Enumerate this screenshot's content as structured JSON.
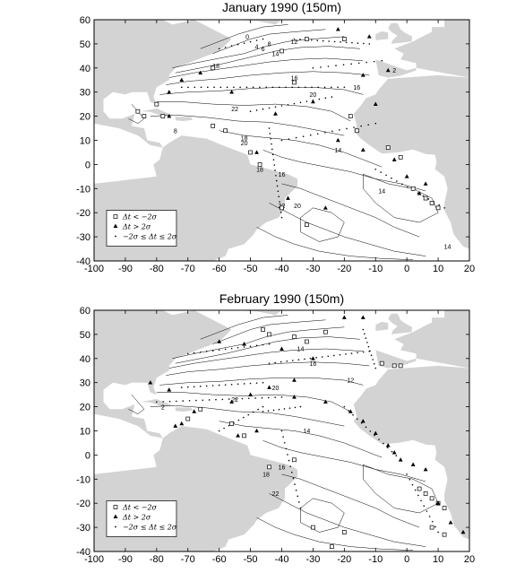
{
  "panels": [
    {
      "title": "January 1990 (150m)",
      "x_ticks": [
        "-100",
        "-90",
        "-80",
        "-70",
        "-60",
        "-50",
        "-40",
        "-30",
        "-20",
        "-10",
        "0",
        "10",
        "20"
      ],
      "y_ticks": [
        "60",
        "50",
        "40",
        "30",
        "20",
        "10",
        "0",
        "-10",
        "-20",
        "-30",
        "-40"
      ],
      "contour_labels": [
        {
          "text": "0",
          "lon": -51,
          "lat": 52
        },
        {
          "text": "4",
          "lon": -48,
          "lat": 48
        },
        {
          "text": "6",
          "lon": -46,
          "lat": 47
        },
        {
          "text": "8",
          "lon": -44,
          "lat": 49
        },
        {
          "text": "12",
          "lon": -36,
          "lat": 50
        },
        {
          "text": "14",
          "lon": -42,
          "lat": 45
        },
        {
          "text": "18",
          "lon": -61,
          "lat": 40
        },
        {
          "text": "16",
          "lon": -36,
          "lat": 35
        },
        {
          "text": "16",
          "lon": -16,
          "lat": 31
        },
        {
          "text": "20",
          "lon": -30,
          "lat": 28
        },
        {
          "text": "22",
          "lon": -55,
          "lat": 22
        },
        {
          "text": "18",
          "lon": -52,
          "lat": 10
        },
        {
          "text": "20",
          "lon": -52,
          "lat": 8
        },
        {
          "text": "16",
          "lon": -40,
          "lat": -5
        },
        {
          "text": "18",
          "lon": -47,
          "lat": -3
        },
        {
          "text": "14",
          "lon": -22,
          "lat": 5
        },
        {
          "text": "14",
          "lon": -8,
          "lat": -12
        },
        {
          "text": "22",
          "lon": -40,
          "lat": -18
        },
        {
          "text": "20",
          "lon": -35,
          "lat": -18
        },
        {
          "text": "14",
          "lon": 13,
          "lat": -35
        },
        {
          "text": "2",
          "lon": -4,
          "lat": 38
        },
        {
          "text": "8",
          "lon": -74,
          "lat": 13
        }
      ],
      "legend": [
        "Δt < −2σ",
        "Δt > 2σ",
        "−2σ ≤ Δt ≤ 2σ"
      ]
    },
    {
      "title": "February 1990 (150m)",
      "x_ticks": [
        "-100",
        "-90",
        "-80",
        "-70",
        "-60",
        "-50",
        "-40",
        "-30",
        "-20",
        "-10",
        "0",
        "10",
        "20"
      ],
      "y_ticks": [
        "60",
        "50",
        "40",
        "30",
        "20",
        "10",
        "0",
        "-10",
        "-20",
        "-30",
        "-40"
      ],
      "contour_labels": [
        {
          "text": "14",
          "lon": -34,
          "lat": 43
        },
        {
          "text": "16",
          "lon": -30,
          "lat": 37
        },
        {
          "text": "12",
          "lon": -18,
          "lat": 30
        },
        {
          "text": "20",
          "lon": -42,
          "lat": 27
        },
        {
          "text": "22",
          "lon": -55,
          "lat": 22
        },
        {
          "text": "2",
          "lon": -78,
          "lat": 19
        },
        {
          "text": "14",
          "lon": -32,
          "lat": 9
        },
        {
          "text": "16",
          "lon": -40,
          "lat": -6
        },
        {
          "text": "18",
          "lon": -45,
          "lat": -9
        },
        {
          "text": "22",
          "lon": -42,
          "lat": -17
        }
      ],
      "legend": [
        "Δt < −2σ",
        "Δt > 2σ",
        "−2σ ≤ Δt ≤ 2σ"
      ]
    }
  ],
  "colors": {
    "land": "#d3d3d3",
    "ocean": "#ffffff",
    "contour": "#000000",
    "marks": "#000000"
  }
}
